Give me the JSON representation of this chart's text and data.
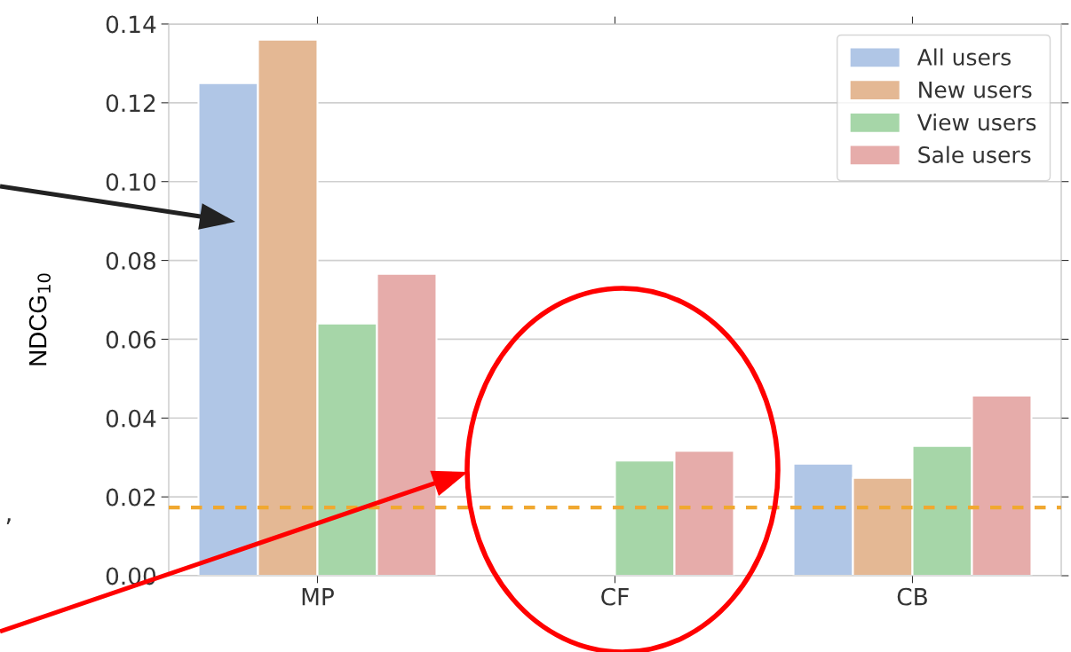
{
  "chart_data": {
    "type": "bar",
    "ylabel": "NDCG$_{10}$",
    "categories": [
      "MP",
      "CF",
      "CB"
    ],
    "series": [
      {
        "name": "All users",
        "color": "#b0c6e6",
        "values": [
          0.125,
          null,
          0.0284
        ]
      },
      {
        "name": "New users",
        "color": "#e4b894",
        "values": [
          0.136,
          null,
          0.0248
        ]
      },
      {
        "name": "View users",
        "color": "#a6d6a8",
        "values": [
          0.064,
          0.0292,
          0.0329
        ]
      },
      {
        "name": "Sale users",
        "color": "#e6acaa",
        "values": [
          0.0766,
          0.0317,
          0.0457
        ]
      }
    ],
    "ylim": [
      0,
      0.14
    ],
    "yticks": [
      {
        "value": 0,
        "label": "0.00"
      },
      {
        "value": 0.02,
        "label": "0.02"
      },
      {
        "value": 0.04,
        "label": "0.04"
      },
      {
        "value": 0.06,
        "label": "0.06"
      },
      {
        "value": 0.08,
        "label": "0.08"
      },
      {
        "value": 0.1,
        "label": "0.10"
      },
      {
        "value": 0.12,
        "label": "0.12"
      },
      {
        "value": 0.14,
        "label": "0.14"
      }
    ],
    "ref_lines": [
      {
        "axis": "y",
        "value": 0.0173,
        "label": null,
        "color": "#f0a830",
        "line_style": "dashed"
      }
    ],
    "annotations": [
      ","
    ],
    "grid": "y",
    "legend": "top right"
  }
}
